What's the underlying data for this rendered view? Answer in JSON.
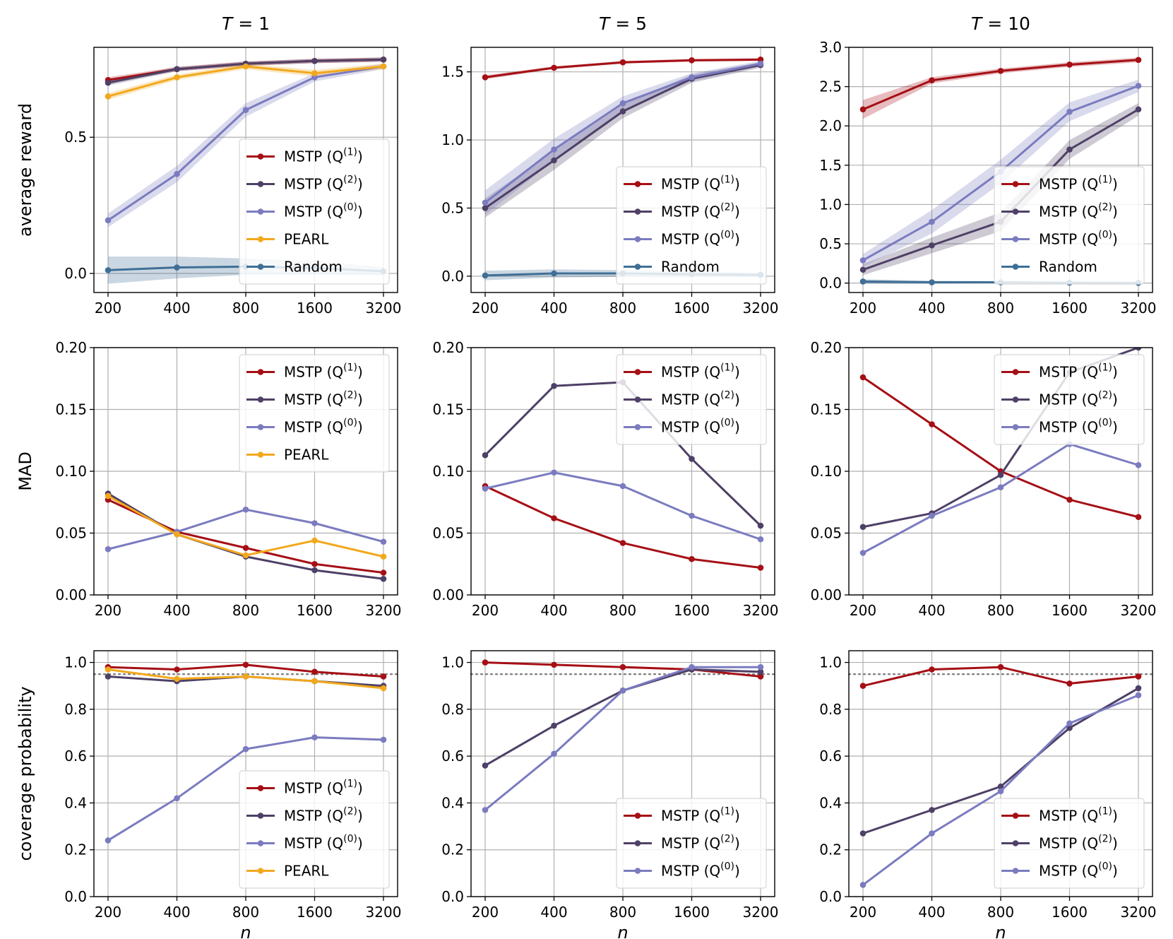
{
  "colors": {
    "q1": "#a50f15",
    "q2": "#4e4066",
    "q0": "#7b7bc0",
    "pearl": "#f2a81d",
    "random": "#3f6f96",
    "grid": "#b0b0b0",
    "ref": "#808080"
  },
  "x_categories": [
    "200",
    "400",
    "800",
    "1600",
    "3200"
  ],
  "column_titles": [
    "T = 1",
    "T = 5",
    "T = 10"
  ],
  "row_ylabels": [
    "average reward",
    "MAD",
    "coverage probability"
  ],
  "xlabel": "n",
  "chart_data": [
    {
      "id": "r0c0",
      "type": "line",
      "ylabel": "average reward",
      "title": "T = 1",
      "ylim": [
        -0.07,
        0.83
      ],
      "yticks": [
        "0.0",
        "0.5"
      ],
      "yticks_values": [
        0.0,
        0.5
      ],
      "legend_loc": "lower-right",
      "refline": null,
      "series": [
        {
          "key": "q1",
          "label_base": "MSTP (Q",
          "label_sup": "(1)",
          "values": [
            0.71,
            0.75,
            0.77,
            0.78,
            0.785
          ],
          "band": [
            0.01,
            0.008,
            0.008,
            0.008,
            0.008
          ]
        },
        {
          "key": "q2",
          "label_base": "MSTP (Q",
          "label_sup": "(2)",
          "values": [
            0.7,
            0.75,
            0.77,
            0.78,
            0.785
          ],
          "band": [
            0.01,
            0.008,
            0.008,
            0.008,
            0.008
          ]
        },
        {
          "key": "q0",
          "label_base": "MSTP (Q",
          "label_sup": "(0)",
          "values": [
            0.195,
            0.365,
            0.6,
            0.72,
            0.76
          ],
          "band": [
            0.025,
            0.03,
            0.025,
            0.015,
            0.01
          ]
        },
        {
          "key": "pearl",
          "label_base": "PEARL",
          "label_sup": "",
          "values": [
            0.65,
            0.72,
            0.76,
            0.735,
            0.76
          ],
          "band": [
            0.012,
            0.01,
            0.01,
            0.012,
            0.01
          ]
        },
        {
          "key": "random",
          "label_base": "Random",
          "label_sup": "",
          "values": [
            0.012,
            0.022,
            0.025,
            0.02,
            0.008
          ],
          "band": [
            0.05,
            0.04,
            0.03,
            0.025,
            0.015
          ]
        }
      ]
    },
    {
      "id": "r0c1",
      "type": "line",
      "ylabel": "",
      "title": "T = 5",
      "ylim": [
        -0.12,
        1.68
      ],
      "yticks": [
        "0.0",
        "0.5",
        "1.0",
        "1.5"
      ],
      "yticks_values": [
        0.0,
        0.5,
        1.0,
        1.5
      ],
      "legend_loc": "lower-right",
      "refline": null,
      "series": [
        {
          "key": "q1",
          "label_base": "MSTP (Q",
          "label_sup": "(1)",
          "values": [
            1.46,
            1.53,
            1.57,
            1.585,
            1.59
          ],
          "band": [
            0.015,
            0.01,
            0.01,
            0.01,
            0.01
          ]
        },
        {
          "key": "q2",
          "label_base": "MSTP (Q",
          "label_sup": "(2)",
          "values": [
            0.5,
            0.85,
            1.21,
            1.45,
            1.55
          ],
          "band": [
            0.07,
            0.07,
            0.05,
            0.03,
            0.02
          ]
        },
        {
          "key": "q0",
          "label_base": "MSTP (Q",
          "label_sup": "(0)",
          "values": [
            0.54,
            0.93,
            1.27,
            1.46,
            1.56
          ],
          "band": [
            0.09,
            0.08,
            0.05,
            0.03,
            0.02
          ]
        },
        {
          "key": "random",
          "label_base": "Random",
          "label_sup": "",
          "values": [
            0.005,
            0.02,
            0.02,
            0.015,
            0.01
          ],
          "band": [
            0.035,
            0.03,
            0.025,
            0.02,
            0.015
          ]
        }
      ]
    },
    {
      "id": "r0c2",
      "type": "line",
      "ylabel": "",
      "title": "T = 10",
      "ylim": [
        -0.12,
        3.0
      ],
      "yticks": [
        "0.0",
        "0.5",
        "1.0",
        "1.5",
        "2.0",
        "2.5",
        "3.0"
      ],
      "yticks_values": [
        0.0,
        0.5,
        1.0,
        1.5,
        2.0,
        2.5,
        3.0
      ],
      "legend_loc": "lower-right",
      "refline": null,
      "series": [
        {
          "key": "q1",
          "label_base": "MSTP (Q",
          "label_sup": "(1)",
          "values": [
            2.21,
            2.58,
            2.7,
            2.78,
            2.84
          ],
          "band": [
            0.12,
            0.04,
            0.03,
            0.03,
            0.03
          ]
        },
        {
          "key": "q2",
          "label_base": "MSTP (Q",
          "label_sup": "(2)",
          "values": [
            0.17,
            0.48,
            0.78,
            1.7,
            2.21
          ],
          "band": [
            0.07,
            0.1,
            0.12,
            0.12,
            0.08
          ]
        },
        {
          "key": "q0",
          "label_base": "MSTP (Q",
          "label_sup": "(0)",
          "values": [
            0.29,
            0.78,
            1.42,
            2.18,
            2.51
          ],
          "band": [
            0.08,
            0.15,
            0.15,
            0.12,
            0.08
          ]
        },
        {
          "key": "random",
          "label_base": "Random",
          "label_sup": "",
          "values": [
            0.02,
            0.01,
            0.01,
            0.005,
            0.003
          ],
          "band": [
            0.03,
            0.02,
            0.015,
            0.01,
            0.01
          ]
        }
      ]
    },
    {
      "id": "r1c0",
      "type": "line",
      "ylabel": "MAD",
      "title": "",
      "ylim": [
        0.0,
        0.2
      ],
      "yticks": [
        "0.00",
        "0.05",
        "0.10",
        "0.15",
        "0.20"
      ],
      "yticks_values": [
        0.0,
        0.05,
        0.1,
        0.15,
        0.2
      ],
      "legend_loc": "upper-right",
      "refline": null,
      "series": [
        {
          "key": "q1",
          "label_base": "MSTP (Q",
          "label_sup": "(1)",
          "values": [
            0.077,
            0.051,
            0.038,
            0.025,
            0.018
          ]
        },
        {
          "key": "q2",
          "label_base": "MSTP (Q",
          "label_sup": "(2)",
          "values": [
            0.082,
            0.049,
            0.031,
            0.02,
            0.013
          ]
        },
        {
          "key": "q0",
          "label_base": "MSTP (Q",
          "label_sup": "(0)",
          "values": [
            0.037,
            0.051,
            0.069,
            0.058,
            0.043
          ]
        },
        {
          "key": "pearl",
          "label_base": "PEARL",
          "label_sup": "",
          "values": [
            0.08,
            0.049,
            0.032,
            0.044,
            0.031
          ]
        }
      ]
    },
    {
      "id": "r1c1",
      "type": "line",
      "ylabel": "",
      "title": "",
      "ylim": [
        0.0,
        0.2
      ],
      "yticks": [
        "0.00",
        "0.05",
        "0.10",
        "0.15",
        "0.20"
      ],
      "yticks_values": [
        0.0,
        0.05,
        0.1,
        0.15,
        0.2
      ],
      "legend_loc": "upper-right",
      "refline": null,
      "series": [
        {
          "key": "q1",
          "label_base": "MSTP (Q",
          "label_sup": "(1)",
          "values": [
            0.088,
            0.062,
            0.042,
            0.029,
            0.022
          ]
        },
        {
          "key": "q2",
          "label_base": "MSTP (Q",
          "label_sup": "(2)",
          "values": [
            0.113,
            0.169,
            0.172,
            0.11,
            0.056
          ]
        },
        {
          "key": "q0",
          "label_base": "MSTP (Q",
          "label_sup": "(0)",
          "values": [
            0.086,
            0.099,
            0.088,
            0.064,
            0.045
          ]
        }
      ]
    },
    {
      "id": "r1c2",
      "type": "line",
      "ylabel": "",
      "title": "",
      "ylim": [
        0.0,
        0.2
      ],
      "yticks": [
        "0.00",
        "0.05",
        "0.10",
        "0.15",
        "0.20"
      ],
      "yticks_values": [
        0.0,
        0.05,
        0.1,
        0.15,
        0.2
      ],
      "legend_loc": "upper-right",
      "refline": null,
      "series": [
        {
          "key": "q1",
          "label_base": "MSTP (Q",
          "label_sup": "(1)",
          "values": [
            0.176,
            0.138,
            0.1,
            0.077,
            0.063
          ]
        },
        {
          "key": "q2",
          "label_base": "MSTP (Q",
          "label_sup": "(2)",
          "values": [
            0.055,
            0.066,
            0.097,
            0.18,
            0.2
          ]
        },
        {
          "key": "q0",
          "label_base": "MSTP (Q",
          "label_sup": "(0)",
          "values": [
            0.034,
            0.064,
            0.087,
            0.122,
            0.105
          ]
        }
      ]
    },
    {
      "id": "r2c0",
      "type": "line",
      "ylabel": "coverage probability",
      "title": "",
      "ylim": [
        0.0,
        1.05
      ],
      "yticks": [
        "0.0",
        "0.2",
        "0.4",
        "0.6",
        "0.8",
        "1.0"
      ],
      "yticks_values": [
        0.0,
        0.2,
        0.4,
        0.6,
        0.8,
        1.0
      ],
      "legend_loc": "lower-right",
      "refline": 0.95,
      "series": [
        {
          "key": "q1",
          "label_base": "MSTP (Q",
          "label_sup": "(1)",
          "values": [
            0.98,
            0.97,
            0.99,
            0.96,
            0.94
          ]
        },
        {
          "key": "q2",
          "label_base": "MSTP (Q",
          "label_sup": "(2)",
          "values": [
            0.94,
            0.92,
            0.94,
            0.92,
            0.9
          ]
        },
        {
          "key": "q0",
          "label_base": "MSTP (Q",
          "label_sup": "(0)",
          "values": [
            0.24,
            0.42,
            0.63,
            0.68,
            0.67
          ]
        },
        {
          "key": "pearl",
          "label_base": "PEARL",
          "label_sup": "",
          "values": [
            0.97,
            0.93,
            0.94,
            0.92,
            0.89
          ]
        }
      ]
    },
    {
      "id": "r2c1",
      "type": "line",
      "ylabel": "",
      "title": "",
      "ylim": [
        0.0,
        1.05
      ],
      "yticks": [
        "0.0",
        "0.2",
        "0.4",
        "0.6",
        "0.8",
        "1.0"
      ],
      "yticks_values": [
        0.0,
        0.2,
        0.4,
        0.6,
        0.8,
        1.0
      ],
      "legend_loc": "lower-right",
      "refline": 0.95,
      "series": [
        {
          "key": "q1",
          "label_base": "MSTP (Q",
          "label_sup": "(1)",
          "values": [
            1.0,
            0.99,
            0.98,
            0.97,
            0.94
          ]
        },
        {
          "key": "q2",
          "label_base": "MSTP (Q",
          "label_sup": "(2)",
          "values": [
            0.56,
            0.73,
            0.88,
            0.97,
            0.96
          ]
        },
        {
          "key": "q0",
          "label_base": "MSTP (Q",
          "label_sup": "(0)",
          "values": [
            0.37,
            0.61,
            0.88,
            0.98,
            0.98
          ]
        }
      ]
    },
    {
      "id": "r2c2",
      "type": "line",
      "ylabel": "",
      "title": "",
      "ylim": [
        0.0,
        1.05
      ],
      "yticks": [
        "0.0",
        "0.2",
        "0.4",
        "0.6",
        "0.8",
        "1.0"
      ],
      "yticks_values": [
        0.0,
        0.2,
        0.4,
        0.6,
        0.8,
        1.0
      ],
      "legend_loc": "lower-right",
      "refline": 0.95,
      "series": [
        {
          "key": "q1",
          "label_base": "MSTP (Q",
          "label_sup": "(1)",
          "values": [
            0.9,
            0.97,
            0.98,
            0.91,
            0.94
          ]
        },
        {
          "key": "q2",
          "label_base": "MSTP (Q",
          "label_sup": "(2)",
          "values": [
            0.27,
            0.37,
            0.47,
            0.72,
            0.89
          ]
        },
        {
          "key": "q0",
          "label_base": "MSTP (Q",
          "label_sup": "(0)",
          "values": [
            0.05,
            0.27,
            0.45,
            0.74,
            0.86
          ]
        }
      ]
    }
  ]
}
